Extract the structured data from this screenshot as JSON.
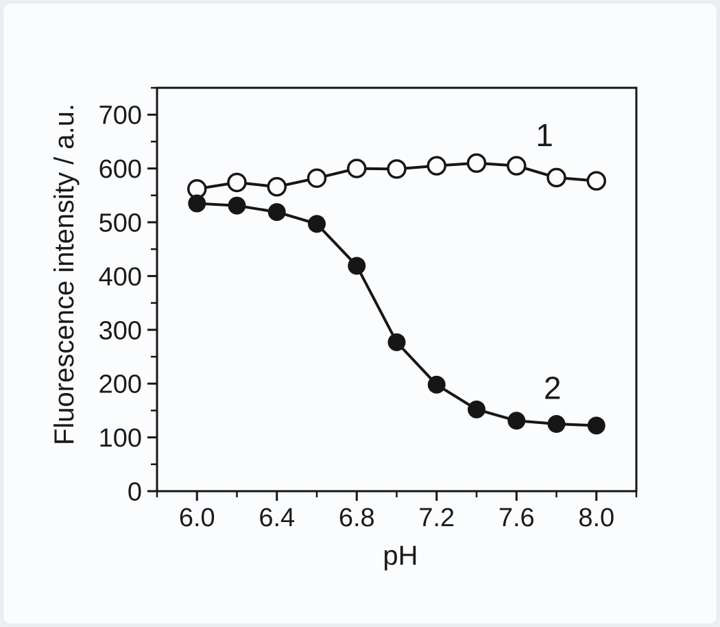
{
  "page": {
    "background": "#eceef1",
    "card_background": "#fbfcfe",
    "ink_color": "#161616"
  },
  "chart_data": {
    "type": "line",
    "title": "",
    "xlabel": "pH",
    "ylabel": "Fluorescence intensity / a.u.",
    "xlim": [
      5.8,
      8.2
    ],
    "ylim": [
      0,
      750
    ],
    "grid": false,
    "legend_position": "none",
    "x_major_ticks": [
      6.0,
      6.4,
      6.8,
      7.2,
      7.6,
      8.0
    ],
    "x_major_tick_labels": [
      "6.0",
      "6.4",
      "6.8",
      "7.2",
      "7.6",
      "8.0"
    ],
    "x_minor_ticks": [
      5.8,
      6.2,
      6.6,
      7.0,
      7.4,
      7.8,
      8.2
    ],
    "y_major_ticks": [
      0,
      100,
      200,
      300,
      400,
      500,
      600,
      700
    ],
    "y_major_tick_labels": [
      "0",
      "100",
      "200",
      "300",
      "400",
      "500",
      "600",
      "700"
    ],
    "y_minor_ticks": [
      50,
      150,
      250,
      350,
      450,
      550,
      650,
      750
    ],
    "x": [
      6.0,
      6.2,
      6.4,
      6.6,
      6.8,
      7.0,
      7.2,
      7.4,
      7.6,
      7.8,
      8.0
    ],
    "series": [
      {
        "name": "1",
        "label": "1",
        "marker": "open-circle",
        "values": [
          562,
          574,
          566,
          582,
          600,
          599,
          605,
          610,
          605,
          583,
          577
        ],
        "label_pos": {
          "x": 7.74,
          "y": 662
        }
      },
      {
        "name": "2",
        "label": "2",
        "marker": "filled-circle",
        "values": [
          535,
          531,
          519,
          497,
          419,
          277,
          198,
          152,
          131,
          125,
          122
        ],
        "label_pos": {
          "x": 7.78,
          "y": 192
        }
      }
    ]
  }
}
